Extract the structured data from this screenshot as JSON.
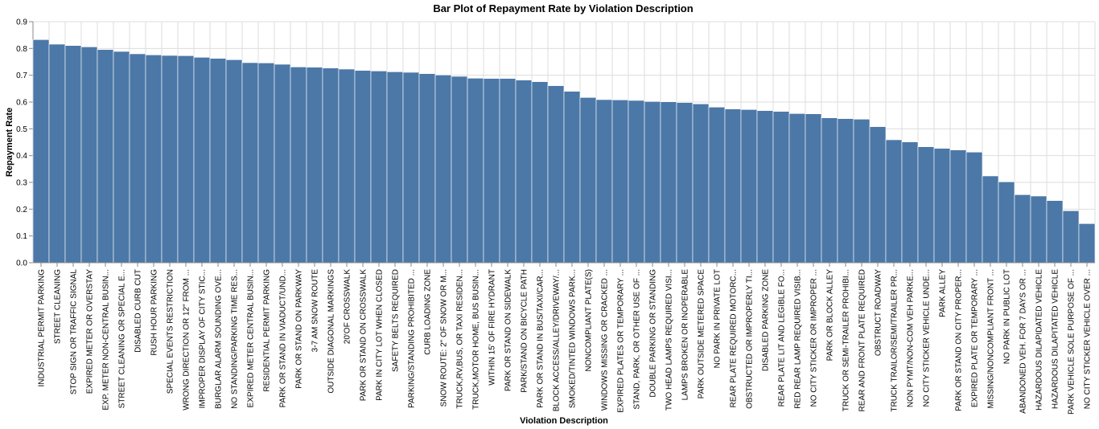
{
  "colors": {
    "bar": "#4c78a8",
    "grid": "#dddddd",
    "axis": "#888888"
  },
  "chart_data": {
    "type": "bar",
    "title": "Bar Plot of Repayment Rate by Violation Description",
    "xlabel": "Violation Description",
    "ylabel": "Repayment Rate",
    "ylim": [
      0,
      0.9
    ],
    "yticks": [
      0.0,
      0.1,
      0.2,
      0.3,
      0.4,
      0.5,
      0.6,
      0.7,
      0.8,
      0.9
    ],
    "yticks_text": [
      "0.0",
      "0.1",
      "0.2",
      "0.3",
      "0.4",
      "0.5",
      "0.6",
      "0.7",
      "0.8",
      "0.9"
    ],
    "grid": true,
    "categories": [
      "INDUSTRIAL PERMIT PARKING",
      "STREET CLEANING",
      "STOP SIGN OR TRAFFIC SIGNAL",
      "EXPIRED METER OR OVERSTAY",
      "EXP. METER NON-CENTRAL BUSIN...",
      "STREET CLEANING OR SPECIAL E...",
      "DISABLED CURB CUT",
      "RUSH HOUR PARKING",
      "SPECIAL EVENTS RESTRICTION",
      "WRONG DIRECTION OR 12\" FROM ...",
      "IMPROPER DISPLAY OF CITY STIC...",
      "BURGLAR ALARM SOUNDING OVE...",
      "NO STANDING/PARKING TIME RES...",
      "EXPIRED METER CENTRAL BUSIN...",
      "RESIDENTIAL PERMIT PARKING",
      "PARK OR STAND IN VIADUCT/UND...",
      "PARK OR STAND ON PARKWAY",
      "3-7 AM SNOW ROUTE",
      "OUTSIDE DIAGONAL MARKINGS",
      "20'OF CROSSWALK",
      "PARK OR STAND ON CROSSWALK",
      "PARK IN CITY LOT WHEN CLOSED",
      "SAFETY BELTS REQUIRED",
      "PARKING/STANDING PROHIBITED ...",
      "CURB LOADING ZONE",
      "SNOW ROUTE: 2\" OF SNOW OR M...",
      "TRUCK,RV,BUS, OR TAXI RESIDEN...",
      "TRUCK,MOTOR HOME, BUS BUSIN...",
      "WITHIN 15' OF FIRE HYDRANT",
      "PARK OR STAND ON SIDEWALK",
      "PARK/STAND ON BICYCLE PATH",
      "PARK OR STAND IN BUS/TAXI/CAR...",
      "BLOCK ACCESS/ALLEY/DRIVEWAY/...",
      "SMOKED/TINTED WINDOWS PARK...",
      "NONCOMPLIANT PLATE(S)",
      "WINDOWS MISSING OR CRACKED ...",
      "EXPIRED PLATES OR TEMPORARY ...",
      "STAND, PARK, OR OTHER USE OF ...",
      "DOUBLE PARKING OR STANDING",
      "TWO HEAD LAMPS REQUIRED VISI...",
      "LAMPS BROKEN OR INOPERABLE",
      "PARK OUTSIDE METERED SPACE",
      "NO PARK IN PRIVATE LOT",
      "REAR PLATE REQUIRED MOTORC...",
      "OBSTRUCTED OR IMPROPERLY TI...",
      "DISABLED PARKING ZONE",
      "REAR PLATE LIT AND LEGIBLE FO...",
      "RED REAR LAMP REQUIRED VISIB...",
      "NO CITY STICKER OR IMPROPER ...",
      "PARK OR BLOCK ALLEY",
      "TRUCK OR SEMI-TRAILER PROHIBI...",
      "REAR AND FRONT PLATE REQUIRED",
      "OBSTRUCT ROADWAY",
      "TRUCK TRAILOR/SEMI/TRAILER PR...",
      "NON PYMT/NON-COM VEH PARKE...",
      "NO CITY STICKER VEHICLE UNDE...",
      "PARK ALLEY",
      "PARK OR STAND ON CITY PROPER...",
      "EXPIRED PLATE OR TEMPORARY ...",
      "MISSING/NONCOMPLIANT FRONT ...",
      "NO PARK IN PUBLIC LOT",
      "ABANDONED VEH. FOR 7 DAYS OR ...",
      "HAZARDOUS DILAPIDATED VEHICLE",
      "HAZARDOUS DILAPITATED VEHICLE",
      "PARK VEHICLE SOLE PURPOSE OF ...",
      "NO CITY STICKER VEHICLE OVER ..."
    ],
    "values": [
      0.833,
      0.816,
      0.811,
      0.806,
      0.796,
      0.789,
      0.78,
      0.776,
      0.774,
      0.773,
      0.767,
      0.763,
      0.758,
      0.747,
      0.746,
      0.741,
      0.731,
      0.73,
      0.727,
      0.723,
      0.718,
      0.716,
      0.713,
      0.711,
      0.706,
      0.701,
      0.696,
      0.689,
      0.688,
      0.688,
      0.682,
      0.676,
      0.661,
      0.64,
      0.617,
      0.609,
      0.608,
      0.606,
      0.602,
      0.601,
      0.598,
      0.593,
      0.581,
      0.574,
      0.572,
      0.568,
      0.565,
      0.557,
      0.556,
      0.541,
      0.538,
      0.536,
      0.508,
      0.459,
      0.451,
      0.433,
      0.427,
      0.421,
      0.413,
      0.324,
      0.302,
      0.254,
      0.249,
      0.232,
      0.194,
      0.146
    ]
  }
}
